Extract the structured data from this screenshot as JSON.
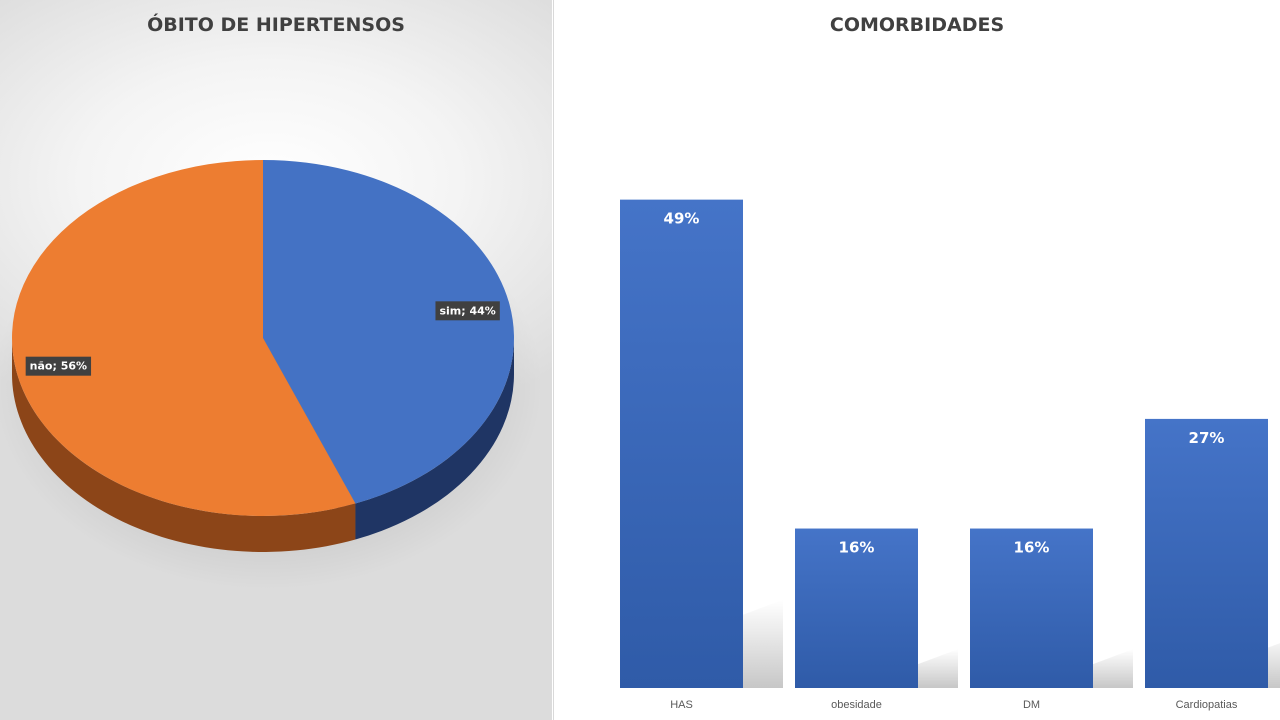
{
  "chart_data": [
    {
      "type": "pie",
      "title": "ÓBITO DE HIPERTENSOS",
      "slices": [
        {
          "label": "sim; 44%",
          "category": "sim",
          "value": 44,
          "color": "#4472C4",
          "side_color": "#1F3564"
        },
        {
          "label": "não; 56%",
          "category": "não",
          "value": 56,
          "color": "#ED7D31",
          "side_color": "#8C4518"
        }
      ]
    },
    {
      "type": "bar",
      "title": "COMORBIDADES",
      "categories": [
        "HAS",
        "obesidade",
        "DM",
        "Cardiopatias"
      ],
      "values": [
        49,
        16,
        16,
        27
      ],
      "data_labels": [
        "49%",
        "16%",
        "16%",
        "27%"
      ],
      "ylim": [
        0,
        60
      ],
      "color": "#4472C4",
      "grid": false
    }
  ]
}
